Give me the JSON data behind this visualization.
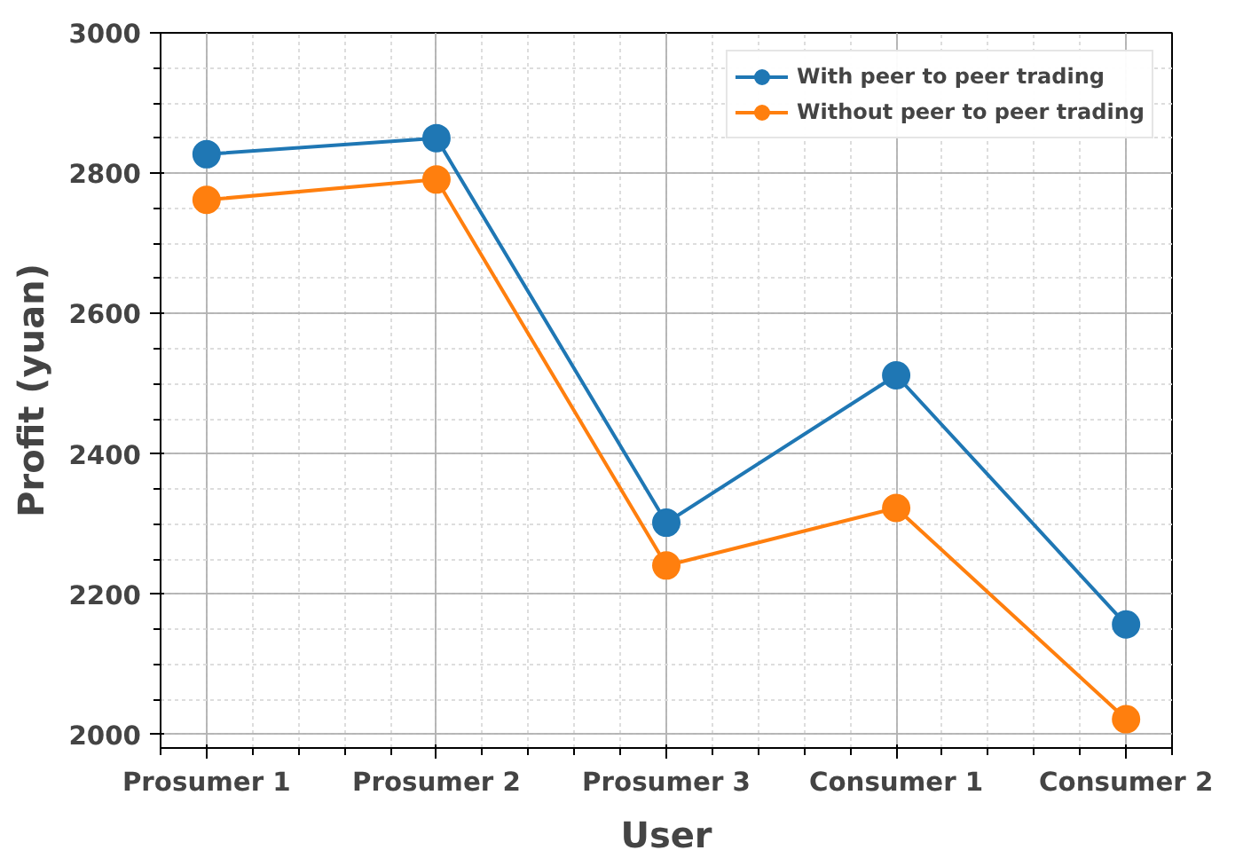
{
  "chart_data": {
    "type": "line",
    "xlabel": "User",
    "ylabel": "Profit (yuan)",
    "categories": [
      "Prosumer 1",
      "Prosumer 2",
      "Prosumer 3",
      "Consumer 1",
      "Consumer 2"
    ],
    "series": [
      {
        "name": "With peer to peer trading",
        "color": "#1f77b4",
        "values": [
          2827,
          2850,
          2302,
          2512,
          2157
        ]
      },
      {
        "name": "Without peer to peer trading",
        "color": "#ff7f0e",
        "values": [
          2762,
          2791,
          2241,
          2323,
          2022
        ]
      }
    ],
    "ylim": [
      1981,
      3000
    ],
    "yticks": [
      2000,
      2200,
      2400,
      2600,
      2800,
      3000
    ],
    "grid": true,
    "legend": "top right",
    "marker": "circle",
    "line_style": "solid"
  }
}
